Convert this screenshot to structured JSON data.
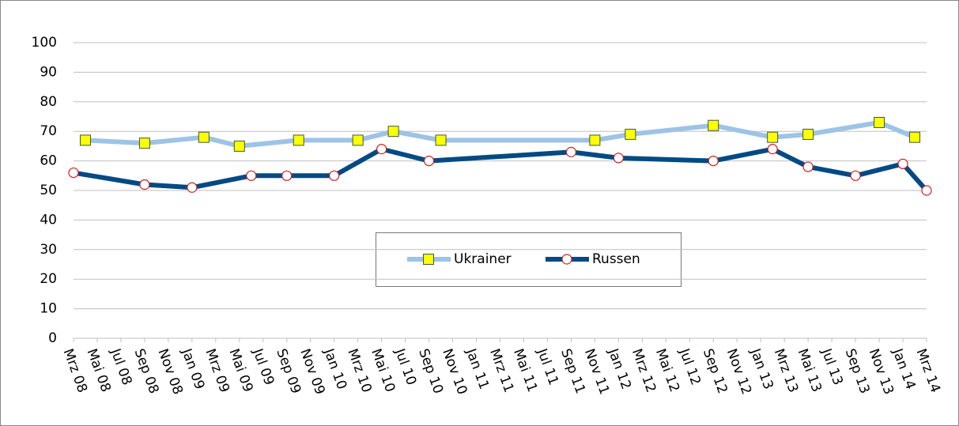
{
  "chart_data": {
    "type": "line",
    "xlim": [
      "2008-03",
      "2014-03"
    ],
    "xticks": [
      {
        "value": "2008-03",
        "label": "Mrz 08"
      },
      {
        "value": "2008-05",
        "label": "Mai 08"
      },
      {
        "value": "2008-07",
        "label": "Jul 08"
      },
      {
        "value": "2008-09",
        "label": "Sep 08"
      },
      {
        "value": "2008-11",
        "label": "Nov 08"
      },
      {
        "value": "2009-01",
        "label": "Jan 09"
      },
      {
        "value": "2009-03",
        "label": "Mrz 09"
      },
      {
        "value": "2009-05",
        "label": "Mai 09"
      },
      {
        "value": "2009-07",
        "label": "Jul 09"
      },
      {
        "value": "2009-09",
        "label": "Sep 09"
      },
      {
        "value": "2009-11",
        "label": "Nov 09"
      },
      {
        "value": "2010-01",
        "label": "Jan 10"
      },
      {
        "value": "2010-03",
        "label": "Mrz 10"
      },
      {
        "value": "2010-05",
        "label": "Mai 10"
      },
      {
        "value": "2010-07",
        "label": "Jul 10"
      },
      {
        "value": "2010-09",
        "label": "Sep 10"
      },
      {
        "value": "2010-11",
        "label": "Nov 10"
      },
      {
        "value": "2011-01",
        "label": "Jan 11"
      },
      {
        "value": "2011-03",
        "label": "Mrz 11"
      },
      {
        "value": "2011-05",
        "label": "Mai 11"
      },
      {
        "value": "2011-07",
        "label": "Jul 11"
      },
      {
        "value": "2011-09",
        "label": "Sep 11"
      },
      {
        "value": "2011-11",
        "label": "Nov 11"
      },
      {
        "value": "2012-01",
        "label": "Jan 12"
      },
      {
        "value": "2012-03",
        "label": "Mrz 12"
      },
      {
        "value": "2012-05",
        "label": "Mai 12"
      },
      {
        "value": "2012-07",
        "label": "Jul 12"
      },
      {
        "value": "2012-09",
        "label": "Sep 12"
      },
      {
        "value": "2012-11",
        "label": "Nov 12"
      },
      {
        "value": "2013-01",
        "label": "Jan 13"
      },
      {
        "value": "2013-03",
        "label": "Mrz 13"
      },
      {
        "value": "2013-05",
        "label": "Mai 13"
      },
      {
        "value": "2013-07",
        "label": "Jul 13"
      },
      {
        "value": "2013-09",
        "label": "Sep 13"
      },
      {
        "value": "2013-11",
        "label": "Nov 13"
      },
      {
        "value": "2014-01",
        "label": "Jan 14"
      },
      {
        "value": "2014-03",
        "label": "Mrz 14"
      }
    ],
    "ylim": [
      0,
      100
    ],
    "yticks": [
      0,
      10,
      20,
      30,
      40,
      50,
      60,
      70,
      80,
      90,
      100
    ],
    "grid": true,
    "legend": "center",
    "series": [
      {
        "name": "Ukrainer",
        "color": "#9dc3e6",
        "marker": "square",
        "marker_color": "#ffff00",
        "x": [
          "2008-04",
          "2008-09",
          "2009-02",
          "2009-05",
          "2009-10",
          "2010-03",
          "2010-06",
          "2010-10",
          "2011-11",
          "2012-02",
          "2012-09",
          "2013-02",
          "2013-05",
          "2013-11",
          "2014-02"
        ],
        "values": [
          67,
          66,
          68,
          65,
          67,
          67,
          70,
          67,
          67,
          69,
          72,
          68,
          69,
          73,
          68
        ]
      },
      {
        "name": "Russen",
        "color": "#004a84",
        "marker": "circle",
        "marker_color": "#ffffff",
        "x": [
          "2008-03",
          "2008-09",
          "2009-01",
          "2009-06",
          "2009-09",
          "2010-01",
          "2010-05",
          "2010-09",
          "2011-09",
          "2012-01",
          "2012-09",
          "2013-02",
          "2013-05",
          "2013-09",
          "2014-01",
          "2014-03"
        ],
        "values": [
          56,
          52,
          51,
          55,
          55,
          55,
          64,
          60,
          63,
          61,
          60,
          64,
          58,
          55,
          59,
          50
        ]
      }
    ]
  }
}
